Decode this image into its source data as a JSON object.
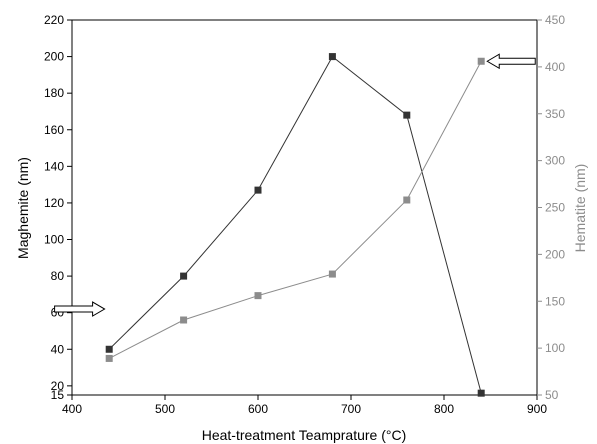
{
  "chart_data": {
    "type": "line",
    "xlabel": "Heat-treatment Teamprature (°C)",
    "x_ticks": [
      "400",
      "500",
      "600",
      "700",
      "800",
      "900"
    ],
    "xlim": [
      400,
      900
    ],
    "y_left": {
      "label": "Maghemite (nm)",
      "ticks": [
        "15",
        "20",
        "40",
        "60",
        "80",
        "100",
        "120",
        "140",
        "160",
        "180",
        "200",
        "220"
      ],
      "lim": [
        15,
        220
      ],
      "color": "#333333"
    },
    "y_right": {
      "label": "Hematite (nm)",
      "ticks": [
        "50",
        "100",
        "150",
        "200",
        "250",
        "300",
        "350",
        "400",
        "450"
      ],
      "lim": [
        50,
        450
      ],
      "color": "#8c8c8c"
    },
    "series": [
      {
        "axis": "left",
        "color": "#333333",
        "x": [
          440,
          520,
          600,
          680,
          760,
          840
        ],
        "values": [
          40,
          80,
          127,
          200,
          168,
          16
        ]
      },
      {
        "axis": "right",
        "color": "#8c8c8c",
        "x": [
          440,
          520,
          600,
          680,
          760,
          840
        ],
        "values": [
          89,
          130,
          156,
          179,
          258,
          406
        ]
      }
    ],
    "annotations": [
      {
        "type": "arrow",
        "direction": "right",
        "target": "left-axis",
        "at": [
          420,
          62
        ]
      },
      {
        "type": "arrow",
        "direction": "left",
        "target": "right-axis",
        "at": [
          868,
          406
        ]
      }
    ]
  }
}
